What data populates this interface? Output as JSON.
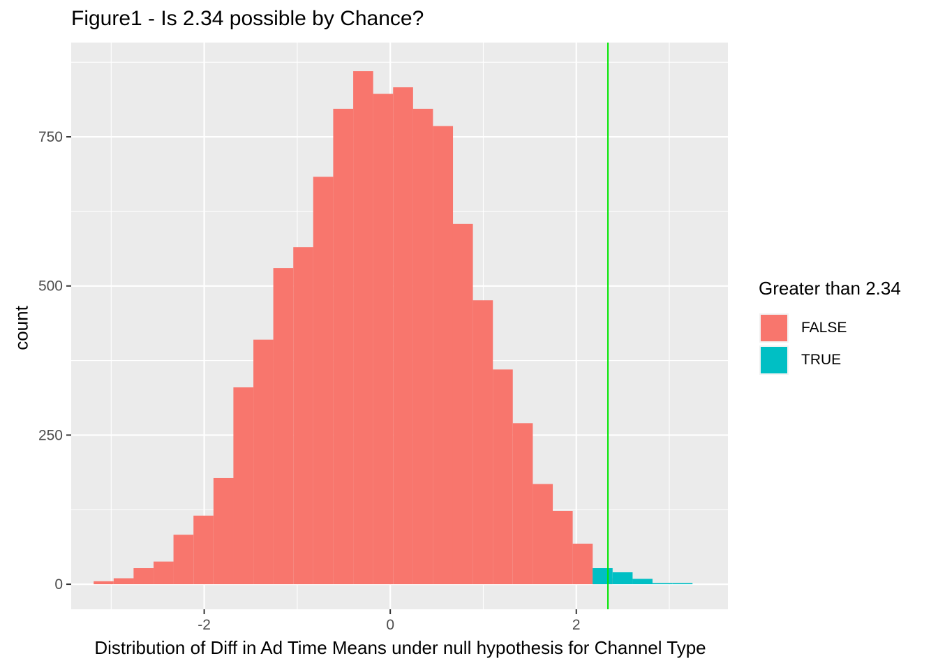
{
  "chart_data": {
    "type": "bar",
    "title": "Figure1 - Is 2.34 possible by Chance?",
    "xlabel": "Distribution of Diff in Ad Time Means under null hypothesis for Channel Type",
    "ylabel": "count",
    "xlim": [
      -3.43,
      3.63
    ],
    "ylim": [
      -42,
      908
    ],
    "x_ticks": [
      -2,
      0,
      2
    ],
    "x_tick_labels": [
      "-2",
      "0",
      "2"
    ],
    "y_ticks": [
      0,
      250,
      500,
      750
    ],
    "y_tick_labels": [
      "0",
      "250",
      "500",
      "750"
    ],
    "grid": true,
    "reference_line": {
      "x": 2.34,
      "color": "#00e600"
    },
    "legend": {
      "title": "Greater than 2.34",
      "position": "right",
      "entries": [
        {
          "label": "FALSE",
          "color": "#f8766d"
        },
        {
          "label": "TRUE",
          "color": "#00bfc4"
        }
      ]
    },
    "bin_width": 0.2146,
    "series": [
      {
        "name": "FALSE",
        "color": "#f8766d",
        "x": [
          -3.081,
          -2.866,
          -2.652,
          -2.437,
          -2.223,
          -2.008,
          -1.793,
          -1.579,
          -1.364,
          -1.15,
          -0.935,
          -0.721,
          -0.506,
          -0.291,
          -0.077,
          0.138,
          0.352,
          0.567,
          0.781,
          0.996,
          1.21,
          1.425,
          1.64,
          1.854,
          2.069,
          2.283
        ],
        "values": [
          5,
          10,
          27,
          38,
          83,
          115,
          178,
          330,
          410,
          530,
          565,
          683,
          797,
          860,
          822,
          833,
          797,
          768,
          604,
          476,
          360,
          270,
          168,
          123,
          68,
          10
        ]
      },
      {
        "name": "TRUE",
        "color": "#00bfc4",
        "x": [
          2.283,
          2.498,
          2.712,
          2.927,
          3.142
        ],
        "values": [
          27,
          20,
          9,
          2,
          2
        ]
      }
    ]
  }
}
